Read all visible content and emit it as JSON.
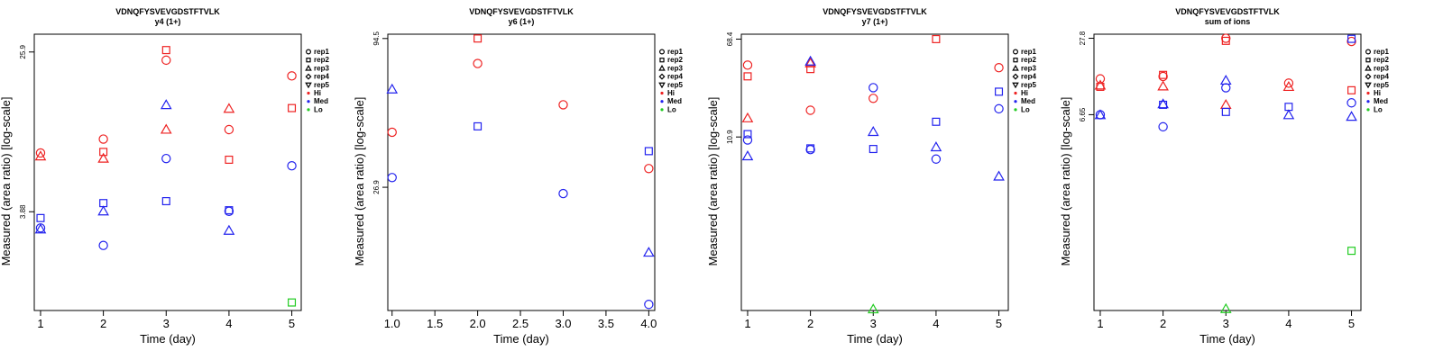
{
  "legend": {
    "entries": [
      {
        "label": "rep1",
        "symbol": "circle"
      },
      {
        "label": "rep2",
        "symbol": "square"
      },
      {
        "label": "rep3",
        "symbol": "triangle-up"
      },
      {
        "label": "rep4",
        "symbol": "diamond"
      },
      {
        "label": "rep5",
        "symbol": "triangle-down"
      },
      {
        "label": "Hi",
        "symbol": "dot",
        "color": "#ee2222"
      },
      {
        "label": "Med",
        "symbol": "dot",
        "color": "#2222ee"
      },
      {
        "label": "Lo",
        "symbol": "dot",
        "color": "#22cc22"
      }
    ]
  },
  "colors": {
    "Hi": "#ee2222",
    "Med": "#2222ee",
    "Lo": "#22cc22"
  },
  "chart_data": [
    {
      "type": "scatter",
      "title": "VDNQFYSVEVGDSTFTVLK",
      "subtitle": "y4 (1+)",
      "xlabel": "Time (day)",
      "ylabel": "Measured (area ratio) [log-scale]",
      "y_scale": "log",
      "xlim": [
        0.9,
        5.15
      ],
      "ylim": [
        1.2,
        32
      ],
      "xticks": [
        "1",
        "2",
        "3",
        "4",
        "5"
      ],
      "yticks": [
        "3.88",
        "25.9"
      ],
      "legend_position": "right",
      "points": [
        {
          "x": 1,
          "y": 7.8,
          "rep": "rep1",
          "level": "Hi"
        },
        {
          "x": 1,
          "y": 7.5,
          "rep": "rep3",
          "level": "Hi"
        },
        {
          "x": 1,
          "y": 3.6,
          "rep": "rep2",
          "level": "Med"
        },
        {
          "x": 1,
          "y": 3.2,
          "rep": "rep1",
          "level": "Med"
        },
        {
          "x": 1,
          "y": 3.15,
          "rep": "rep3",
          "level": "Med"
        },
        {
          "x": 2,
          "y": 9.2,
          "rep": "rep1",
          "level": "Hi"
        },
        {
          "x": 2,
          "y": 7.9,
          "rep": "rep2",
          "level": "Hi"
        },
        {
          "x": 2,
          "y": 7.3,
          "rep": "rep3",
          "level": "Hi"
        },
        {
          "x": 2,
          "y": 4.3,
          "rep": "rep2",
          "level": "Med"
        },
        {
          "x": 2,
          "y": 3.9,
          "rep": "rep3",
          "level": "Med"
        },
        {
          "x": 2,
          "y": 2.6,
          "rep": "rep1",
          "level": "Med"
        },
        {
          "x": 3,
          "y": 26.5,
          "rep": "rep2",
          "level": "Hi"
        },
        {
          "x": 3,
          "y": 23.5,
          "rep": "rep1",
          "level": "Hi"
        },
        {
          "x": 3,
          "y": 10.3,
          "rep": "rep3",
          "level": "Hi"
        },
        {
          "x": 3,
          "y": 13.8,
          "rep": "rep3",
          "level": "Med"
        },
        {
          "x": 3,
          "y": 7.3,
          "rep": "rep1",
          "level": "Med"
        },
        {
          "x": 3,
          "y": 4.4,
          "rep": "rep2",
          "level": "Med"
        },
        {
          "x": 4,
          "y": 13.2,
          "rep": "rep3",
          "level": "Hi"
        },
        {
          "x": 4,
          "y": 10.3,
          "rep": "rep1",
          "level": "Hi"
        },
        {
          "x": 4,
          "y": 7.2,
          "rep": "rep2",
          "level": "Hi"
        },
        {
          "x": 4,
          "y": 3.95,
          "rep": "rep2",
          "level": "Med"
        },
        {
          "x": 4,
          "y": 3.9,
          "rep": "rep1",
          "level": "Med"
        },
        {
          "x": 4,
          "y": 3.1,
          "rep": "rep3",
          "level": "Med"
        },
        {
          "x": 5,
          "y": 19.5,
          "rep": "rep1",
          "level": "Hi"
        },
        {
          "x": 5,
          "y": 13.3,
          "rep": "rep2",
          "level": "Hi"
        },
        {
          "x": 5,
          "y": 6.7,
          "rep": "rep1",
          "level": "Med"
        },
        {
          "x": 5,
          "y": 1.32,
          "rep": "rep2",
          "level": "Lo"
        }
      ]
    },
    {
      "type": "scatter",
      "title": "VDNQFYSVEVGDSTFTVLK",
      "subtitle": "y6 (1+)",
      "xlabel": "Time (day)",
      "ylabel": "Measured (area ratio) [log-scale]",
      "y_scale": "log",
      "xlim": [
        0.95,
        4.07
      ],
      "ylim": [
        9.5,
        98
      ],
      "xticks": [
        "1.0",
        "1.5",
        "2.0",
        "2.5",
        "3.0",
        "3.5",
        "4.0"
      ],
      "yticks": [
        "26.9",
        "94.5"
      ],
      "legend_position": "right",
      "points": [
        {
          "x": 1,
          "y": 42.8,
          "rep": "rep1",
          "level": "Hi"
        },
        {
          "x": 1,
          "y": 61.5,
          "rep": "rep3",
          "level": "Med"
        },
        {
          "x": 1,
          "y": 29.2,
          "rep": "rep1",
          "level": "Med"
        },
        {
          "x": 2,
          "y": 94.5,
          "rep": "rep2",
          "level": "Hi"
        },
        {
          "x": 2,
          "y": 76.5,
          "rep": "rep1",
          "level": "Hi"
        },
        {
          "x": 2,
          "y": 45.0,
          "rep": "rep2",
          "level": "Med"
        },
        {
          "x": 3,
          "y": 54.0,
          "rep": "rep1",
          "level": "Hi"
        },
        {
          "x": 3,
          "y": 25.5,
          "rep": "rep1",
          "level": "Med"
        },
        {
          "x": 4,
          "y": 31.5,
          "rep": "rep1",
          "level": "Hi"
        },
        {
          "x": 4,
          "y": 36.5,
          "rep": "rep2",
          "level": "Med"
        },
        {
          "x": 4,
          "y": 15.5,
          "rep": "rep3",
          "level": "Med"
        },
        {
          "x": 4,
          "y": 10.0,
          "rep": "rep1",
          "level": "Med"
        }
      ]
    },
    {
      "type": "scatter",
      "title": "VDNQFYSVEVGDSTFTVLK",
      "subtitle": "y7 (1+)",
      "xlabel": "Time (day)",
      "ylabel": "Measured (area ratio) [log-scale]",
      "y_scale": "log",
      "xlim": [
        0.9,
        5.15
      ],
      "ylim": [
        0.42,
        75
      ],
      "xticks": [
        "1",
        "2",
        "3",
        "4",
        "5"
      ],
      "yticks": [
        "10.9",
        "68.4"
      ],
      "legend_position": "right",
      "points": [
        {
          "x": 1,
          "y": 42.0,
          "rep": "rep1",
          "level": "Hi"
        },
        {
          "x": 1,
          "y": 34.0,
          "rep": "rep2",
          "level": "Hi"
        },
        {
          "x": 1,
          "y": 15.5,
          "rep": "rep3",
          "level": "Hi"
        },
        {
          "x": 1,
          "y": 11.5,
          "rep": "rep2",
          "level": "Med"
        },
        {
          "x": 1,
          "y": 10.3,
          "rep": "rep1",
          "level": "Med"
        },
        {
          "x": 1,
          "y": 7.6,
          "rep": "rep3",
          "level": "Med"
        },
        {
          "x": 2,
          "y": 43.5,
          "rep": "rep3",
          "level": "Hi"
        },
        {
          "x": 2,
          "y": 39.0,
          "rep": "rep2",
          "level": "Hi"
        },
        {
          "x": 2,
          "y": 18.0,
          "rep": "rep1",
          "level": "Hi"
        },
        {
          "x": 2,
          "y": 45.0,
          "rep": "rep3",
          "level": "Med"
        },
        {
          "x": 2,
          "y": 8.8,
          "rep": "rep2",
          "level": "Med"
        },
        {
          "x": 2,
          "y": 8.6,
          "rep": "rep1",
          "level": "Med"
        },
        {
          "x": 3,
          "y": 22.5,
          "rep": "rep1",
          "level": "Hi"
        },
        {
          "x": 3,
          "y": 27.5,
          "rep": "rep1",
          "level": "Med"
        },
        {
          "x": 3,
          "y": 12.0,
          "rep": "rep3",
          "level": "Med"
        },
        {
          "x": 3,
          "y": 8.7,
          "rep": "rep2",
          "level": "Med"
        },
        {
          "x": 3,
          "y": 0.43,
          "rep": "rep3",
          "level": "Lo"
        },
        {
          "x": 4,
          "y": 68.4,
          "rep": "rep2",
          "level": "Hi"
        },
        {
          "x": 4,
          "y": 14.5,
          "rep": "rep2",
          "level": "Med"
        },
        {
          "x": 4,
          "y": 9.0,
          "rep": "rep3",
          "level": "Med"
        },
        {
          "x": 4,
          "y": 7.2,
          "rep": "rep1",
          "level": "Med"
        },
        {
          "x": 5,
          "y": 40.0,
          "rep": "rep1",
          "level": "Hi"
        },
        {
          "x": 5,
          "y": 25.5,
          "rep": "rep2",
          "level": "Med"
        },
        {
          "x": 5,
          "y": 18.5,
          "rep": "rep1",
          "level": "Med"
        },
        {
          "x": 5,
          "y": 5.2,
          "rep": "rep3",
          "level": "Med"
        }
      ]
    },
    {
      "type": "scatter",
      "title": "VDNQFYSVEVGDSTFTVLK",
      "subtitle": "sum of ions",
      "xlabel": "Time (day)",
      "ylabel": "Measured (area ratio) [log-scale]",
      "y_scale": "log",
      "xlim": [
        0.9,
        5.15
      ],
      "ylim": [
        0.17,
        30
      ],
      "xticks": [
        "1",
        "2",
        "3",
        "4",
        "5"
      ],
      "yticks": [
        "6.65",
        "27.8"
      ],
      "legend_position": "right",
      "points": [
        {
          "x": 1,
          "y": 13.0,
          "rep": "rep1",
          "level": "Hi"
        },
        {
          "x": 1,
          "y": 11.5,
          "rep": "rep3",
          "level": "Hi"
        },
        {
          "x": 1,
          "y": 11.2,
          "rep": "rep2",
          "level": "Hi"
        },
        {
          "x": 1,
          "y": 6.65,
          "rep": "rep1",
          "level": "Med"
        },
        {
          "x": 1,
          "y": 6.6,
          "rep": "rep3",
          "level": "Med"
        },
        {
          "x": 2,
          "y": 14.0,
          "rep": "rep2",
          "level": "Hi"
        },
        {
          "x": 2,
          "y": 13.6,
          "rep": "rep1",
          "level": "Hi"
        },
        {
          "x": 2,
          "y": 11.3,
          "rep": "rep3",
          "level": "Hi"
        },
        {
          "x": 2,
          "y": 8.1,
          "rep": "rep3",
          "level": "Med"
        },
        {
          "x": 2,
          "y": 8.0,
          "rep": "rep2",
          "level": "Med"
        },
        {
          "x": 2,
          "y": 5.3,
          "rep": "rep1",
          "level": "Med"
        },
        {
          "x": 3,
          "y": 27.8,
          "rep": "rep1",
          "level": "Hi"
        },
        {
          "x": 3,
          "y": 26.5,
          "rep": "rep2",
          "level": "Hi"
        },
        {
          "x": 3,
          "y": 8.0,
          "rep": "rep3",
          "level": "Hi"
        },
        {
          "x": 3,
          "y": 12.6,
          "rep": "rep3",
          "level": "Med"
        },
        {
          "x": 3,
          "y": 11.0,
          "rep": "rep1",
          "level": "Med"
        },
        {
          "x": 3,
          "y": 7.0,
          "rep": "rep2",
          "level": "Med"
        },
        {
          "x": 3,
          "y": 0.175,
          "rep": "rep3",
          "level": "Lo"
        },
        {
          "x": 4,
          "y": 12.0,
          "rep": "rep1",
          "level": "Hi"
        },
        {
          "x": 4,
          "y": 11.2,
          "rep": "rep3",
          "level": "Hi"
        },
        {
          "x": 4,
          "y": 7.7,
          "rep": "rep2",
          "level": "Med"
        },
        {
          "x": 4,
          "y": 6.6,
          "rep": "rep3",
          "level": "Med"
        },
        {
          "x": 5,
          "y": 26.2,
          "rep": "rep1",
          "level": "Hi"
        },
        {
          "x": 5,
          "y": 10.5,
          "rep": "rep2",
          "level": "Hi"
        },
        {
          "x": 5,
          "y": 27.5,
          "rep": "rep2",
          "level": "Med"
        },
        {
          "x": 5,
          "y": 8.3,
          "rep": "rep1",
          "level": "Med"
        },
        {
          "x": 5,
          "y": 6.4,
          "rep": "rep3",
          "level": "Med"
        },
        {
          "x": 5,
          "y": 0.52,
          "rep": "rep2",
          "level": "Lo"
        }
      ]
    }
  ]
}
